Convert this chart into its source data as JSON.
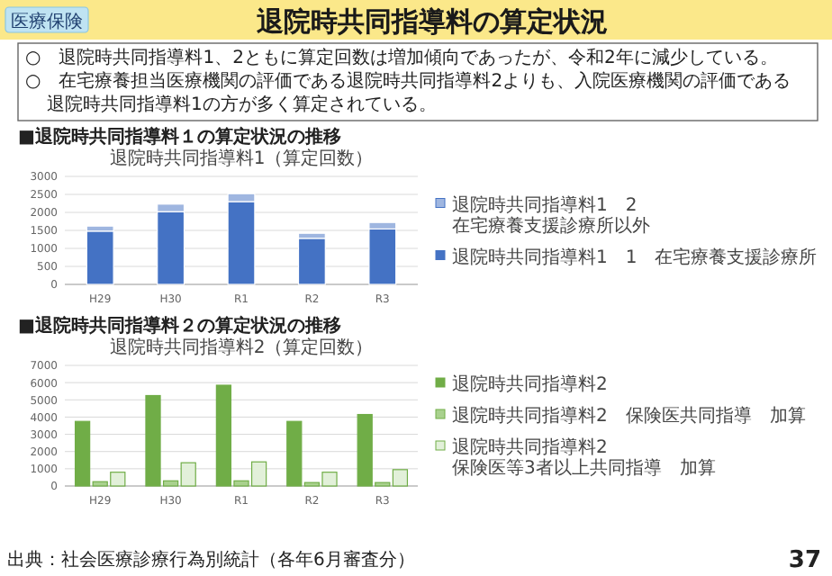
{
  "chart_data": [
    {
      "type": "bar",
      "title": "退院時共同指導料1（算定回数）",
      "stacked": true,
      "categories": [
        "H29",
        "H30",
        "R1",
        "R2",
        "R3"
      ],
      "series": [
        {
          "name": "退院時共同指導料1　1　在宅療養支援診療所",
          "color": "#4472c4",
          "values": [
            1480,
            2020,
            2300,
            1280,
            1540
          ]
        },
        {
          "name": "退院時共同指導料1　2　在宅療養支援診療所以外",
          "color": "#9fb6e0",
          "values": [
            140,
            210,
            220,
            140,
            180
          ]
        }
      ],
      "ylim": [
        0,
        3000
      ],
      "yticks": [
        0,
        500,
        1000,
        1500,
        2000,
        2500,
        3000
      ],
      "grid": "y",
      "legend": "right",
      "annotations": [
        "医療保険",
        "退院時共同指導料の算定状況",
        "○　退院時共同指導料1、2ともに算定回数は増加傾向であったが、令和2年に減少している。",
        "○　在宅療養担当医療機関の評価である退院時共同指導料2よりも、入院医療機関の評価である退院時共同指導料1の方が多く算定されている。",
        "■退院時共同指導料１の算定状況の推移"
      ]
    },
    {
      "type": "bar",
      "title": "退院時共同指導料2（算定回数）",
      "categories": [
        "H29",
        "H30",
        "R1",
        "R2",
        "R3"
      ],
      "series": [
        {
          "name": "退院時共同指導料2",
          "color": "#70ad47",
          "values": [
            3750,
            5250,
            5850,
            3750,
            4150
          ]
        },
        {
          "name": "退院時共同指導料2　保険医共同指導　加算",
          "color": "#a9d18e",
          "values": [
            250,
            300,
            300,
            200,
            200
          ]
        },
        {
          "name": "退院時共同指導料2　保険医等3者以上共同指導　加算",
          "color": "#e2f0d9",
          "values": [
            800,
            1350,
            1400,
            800,
            950
          ]
        }
      ],
      "ylim": [
        0,
        7000
      ],
      "yticks": [
        0,
        1000,
        2000,
        3000,
        4000,
        5000,
        6000,
        7000
      ],
      "grid": "y",
      "legend": "right",
      "annotations": [
        "■退院時共同指導料２の算定状況の推移",
        "出典：社会医療診療行為別統計（各年6月審査分）",
        "37"
      ]
    }
  ]
}
